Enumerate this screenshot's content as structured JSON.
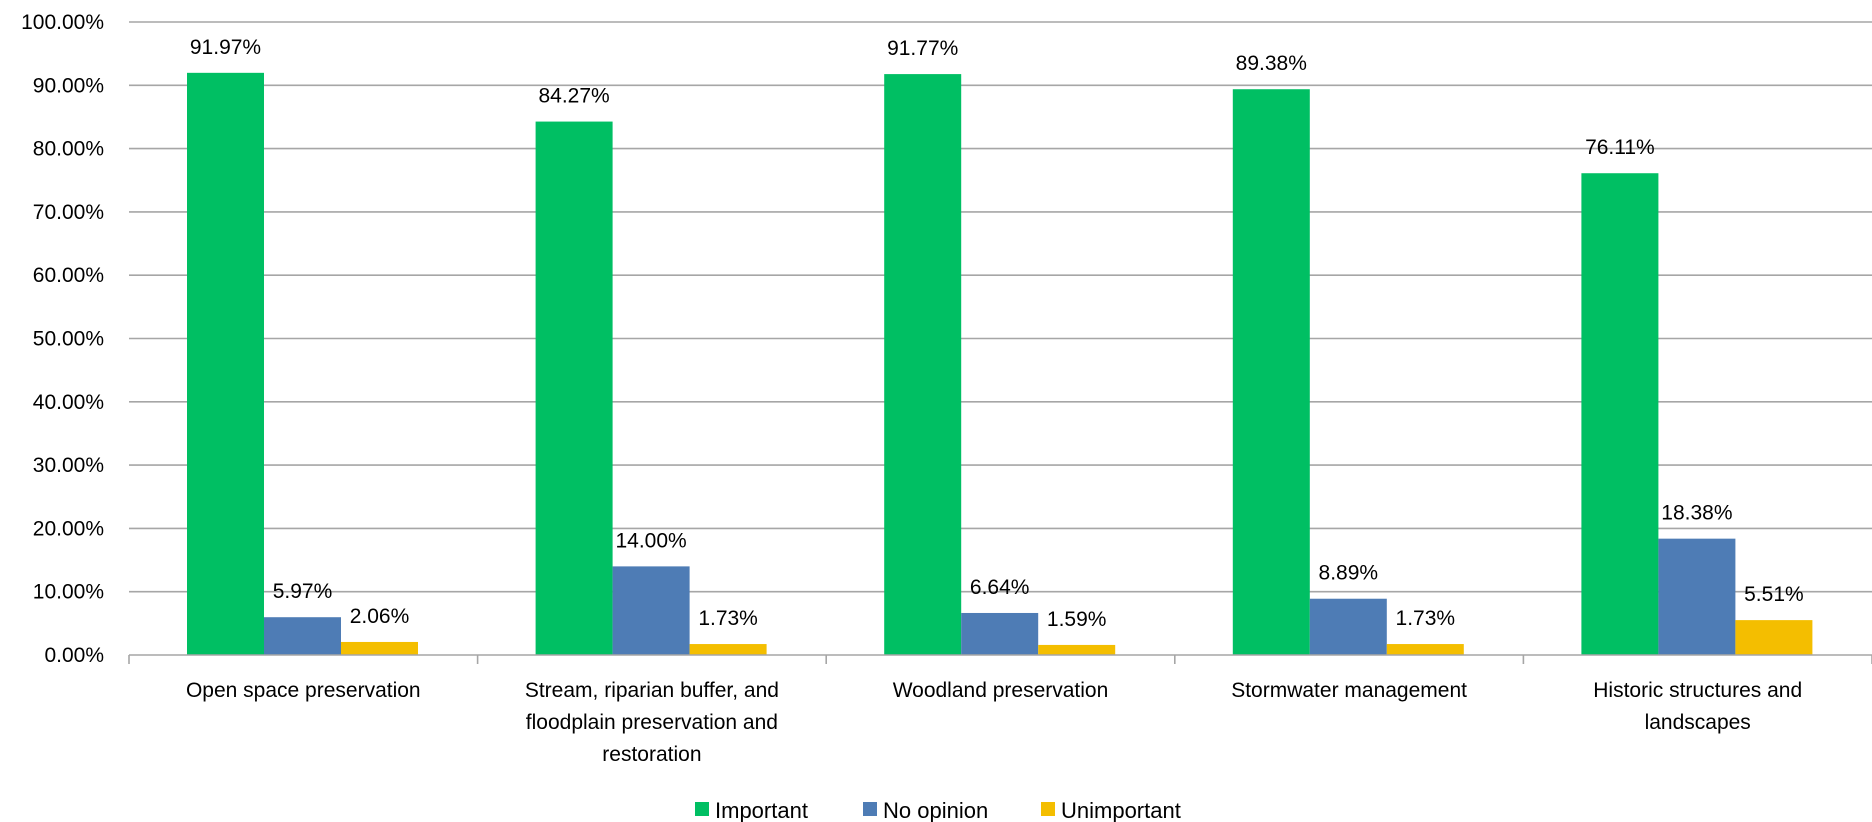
{
  "chart_data": {
    "type": "bar",
    "categories": [
      [
        "Open space preservation"
      ],
      [
        "Stream, riparian buffer, and",
        "floodplain preservation and",
        "restoration"
      ],
      [
        "Woodland preservation"
      ],
      [
        "Stormwater management"
      ],
      [
        "Historic structures and",
        "landscapes"
      ]
    ],
    "series": [
      {
        "name": "Important",
        "color": "#00BF63",
        "values": [
          91.97,
          84.27,
          91.77,
          89.38,
          76.11
        ],
        "labels": [
          "91.97%",
          "84.27%",
          "91.77%",
          "89.38%",
          "76.11%"
        ]
      },
      {
        "name": "No opinion",
        "color": "#4E7CB5",
        "values": [
          5.97,
          14.0,
          6.64,
          8.89,
          18.38
        ],
        "labels": [
          "5.97%",
          "14.00%",
          "6.64%",
          "8.89%",
          "18.38%"
        ]
      },
      {
        "name": "Unimportant",
        "color": "#F4BE00",
        "values": [
          2.06,
          1.73,
          1.59,
          1.73,
          5.51
        ],
        "labels": [
          "2.06%",
          "1.73%",
          "1.59%",
          "1.73%",
          "5.51%"
        ]
      }
    ],
    "y_ticks": [
      0,
      10,
      20,
      30,
      40,
      50,
      60,
      70,
      80,
      90,
      100
    ],
    "y_tick_labels": [
      "0.00%",
      "10.00%",
      "20.00%",
      "30.00%",
      "40.00%",
      "50.00%",
      "60.00%",
      "70.00%",
      "80.00%",
      "90.00%",
      "100.00%"
    ],
    "ylim": [
      0,
      100
    ],
    "grid": true,
    "legend_position": "bottom-center"
  }
}
